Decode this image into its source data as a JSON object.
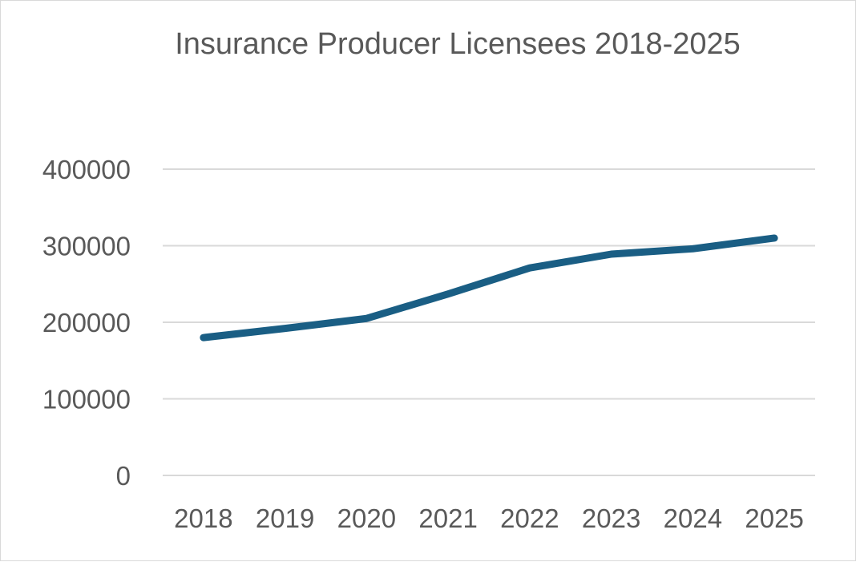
{
  "chart_data": {
    "type": "line",
    "title": "Insurance Producer Licensees 2018-2025",
    "categories": [
      "2018",
      "2019",
      "2020",
      "2021",
      "2022",
      "2023",
      "2024",
      "2025"
    ],
    "series": [
      {
        "values": [
          180000,
          192000,
          205000,
          237000,
          271000,
          289000,
          296000,
          310000
        ],
        "color": "#1a5e84"
      }
    ],
    "yticks": [
      "0",
      "100000",
      "200000",
      "300000",
      "400000"
    ],
    "ylim": [
      0,
      400000
    ],
    "xlabel": "",
    "ylabel": "",
    "grid": true,
    "legend": "none"
  }
}
